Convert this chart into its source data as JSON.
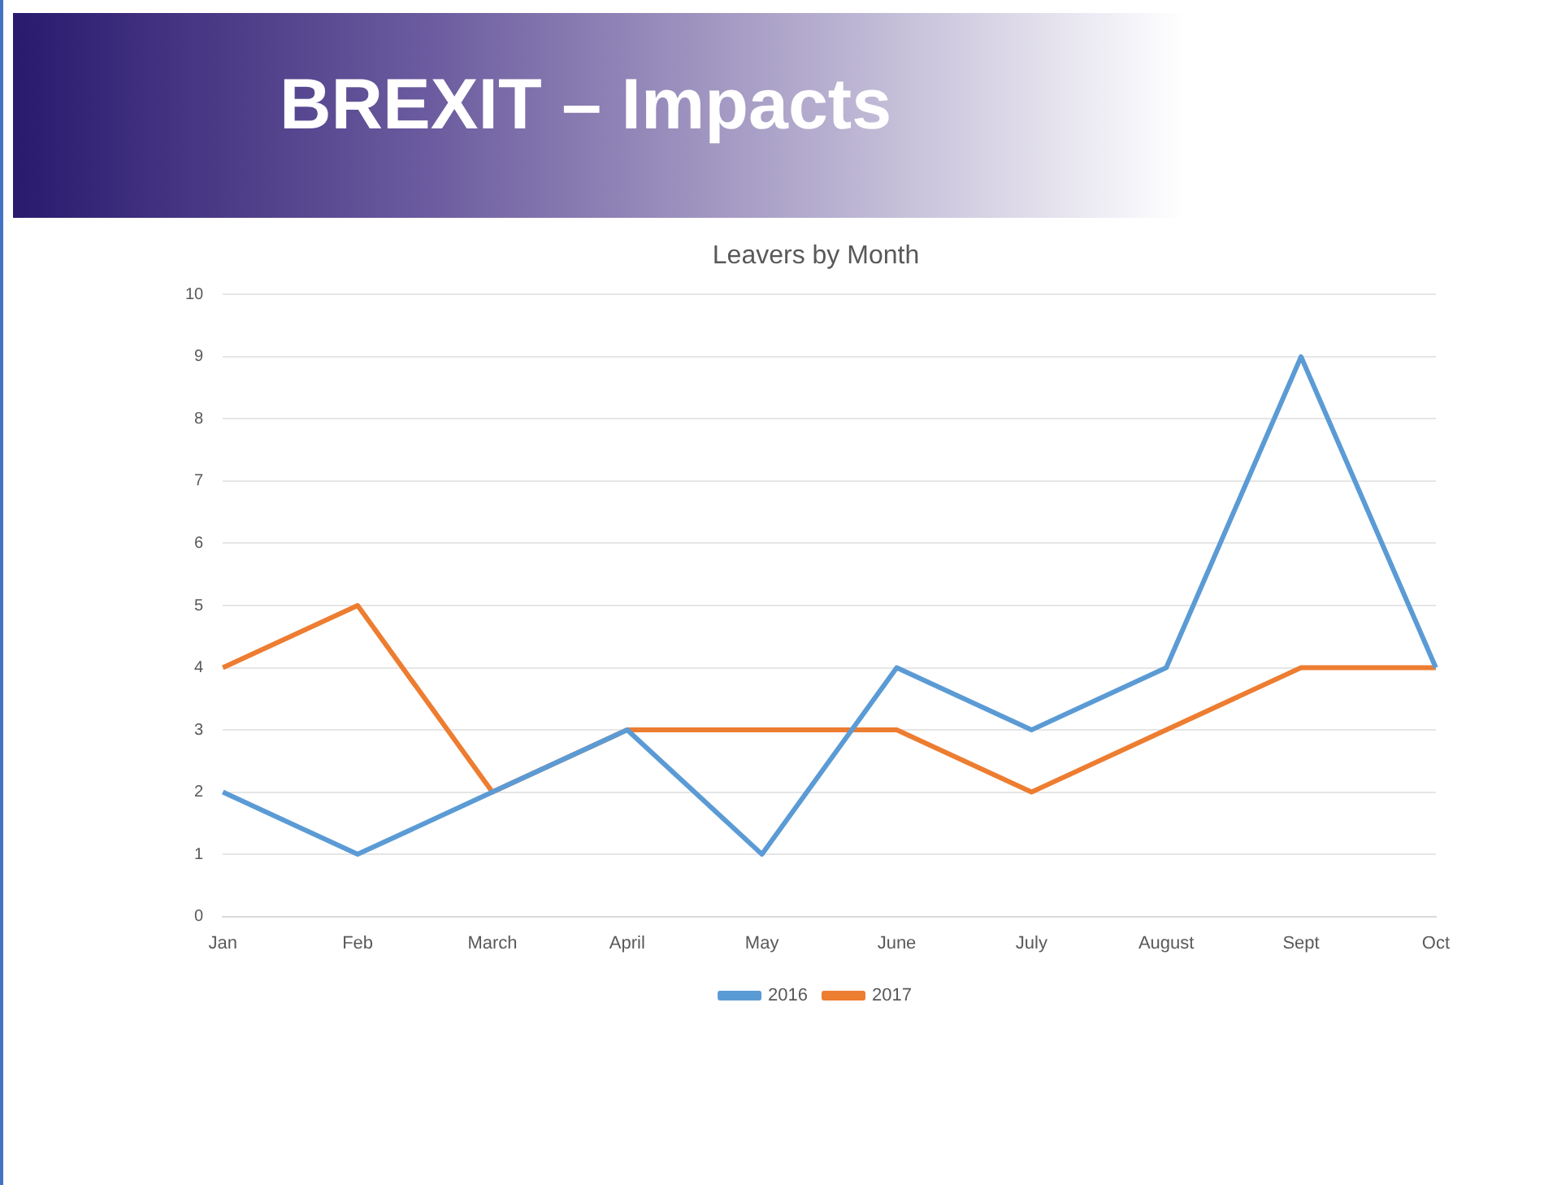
{
  "chart_data": {
    "type": "line",
    "title": "BREXIT – Impacts",
    "subtitle": "Leavers by Month",
    "categories": [
      "Jan",
      "Feb",
      "March",
      "April",
      "May",
      "June",
      "July",
      "August",
      "Sept",
      "Oct"
    ],
    "series": [
      {
        "name": "2016",
        "color": "#5b9bd5",
        "values": [
          2,
          1,
          2,
          3,
          1,
          4,
          3,
          4,
          9,
          4
        ]
      },
      {
        "name": "2017",
        "color": "#ed7d31",
        "values": [
          4,
          5,
          2,
          3,
          3,
          3,
          2,
          3,
          4,
          4
        ]
      }
    ],
    "ylim": [
      0,
      10
    ],
    "yticks": [
      0,
      1,
      2,
      3,
      4,
      5,
      6,
      7,
      8,
      9,
      10
    ],
    "grid": "y",
    "legend": "bottom",
    "marker": "none",
    "line_style": "solid"
  }
}
